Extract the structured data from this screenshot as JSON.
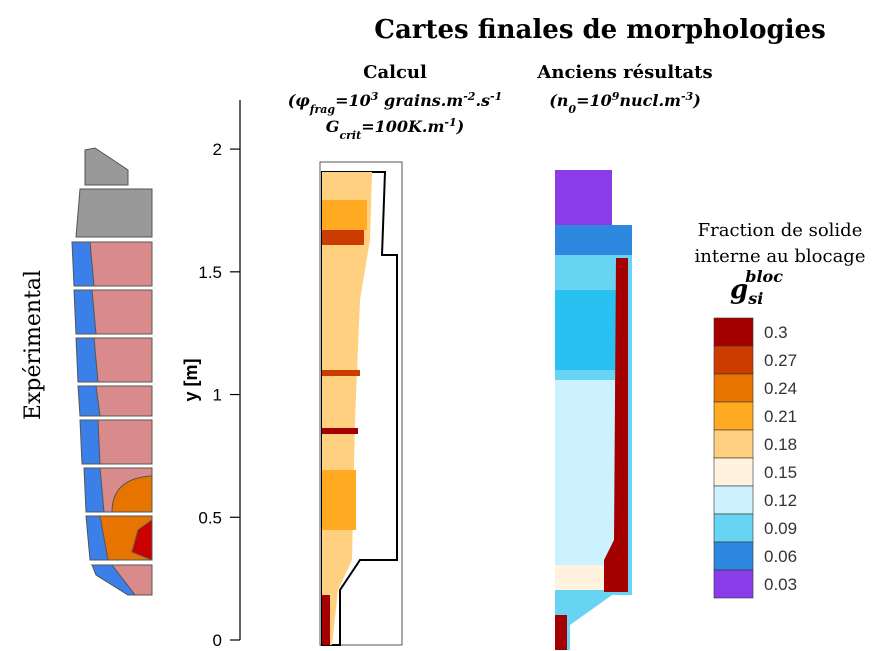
{
  "title": "Cartes finales de morphologies",
  "experimental_label": "Expérimental",
  "y_axis": {
    "label": "y [m]",
    "range": [
      0,
      2.2
    ],
    "ticks": [
      0,
      0.5,
      1,
      1.5,
      2
    ]
  },
  "panels": [
    {
      "title": "Calcul",
      "params_line1": [
        "(φ",
        "frag",
        "=10",
        "3",
        " grains.m",
        "-2",
        ".s",
        "-1"
      ],
      "params_line2": [
        "G",
        "crit",
        "=100K.m",
        "-1",
        ")"
      ]
    },
    {
      "title": "Anciens résultats",
      "params_line1": [
        "(n",
        "0",
        "=10",
        "9",
        "nucl.m",
        "-3",
        ")"
      ]
    }
  ],
  "colorbar": {
    "title_line1": "Fraction de solide",
    "title_line2": "interne au blocage",
    "symbol": [
      "g",
      "si",
      "bloc"
    ],
    "levels": [
      {
        "value": 0.3,
        "color": "#a50000"
      },
      {
        "value": 0.27,
        "color": "#cc3c00"
      },
      {
        "value": 0.24,
        "color": "#e87400"
      },
      {
        "value": 0.21,
        "color": "#ffaa20"
      },
      {
        "value": 0.18,
        "color": "#ffd080"
      },
      {
        "value": 0.15,
        "color": "#fff2de"
      },
      {
        "value": 0.12,
        "color": "#cdf2ff"
      },
      {
        "value": 0.09,
        "color": "#66d4f2"
      },
      {
        "value": 0.06,
        "color": "#2f88e0"
      },
      {
        "value": 0.03,
        "color": "#8a3ce8"
      }
    ]
  }
}
